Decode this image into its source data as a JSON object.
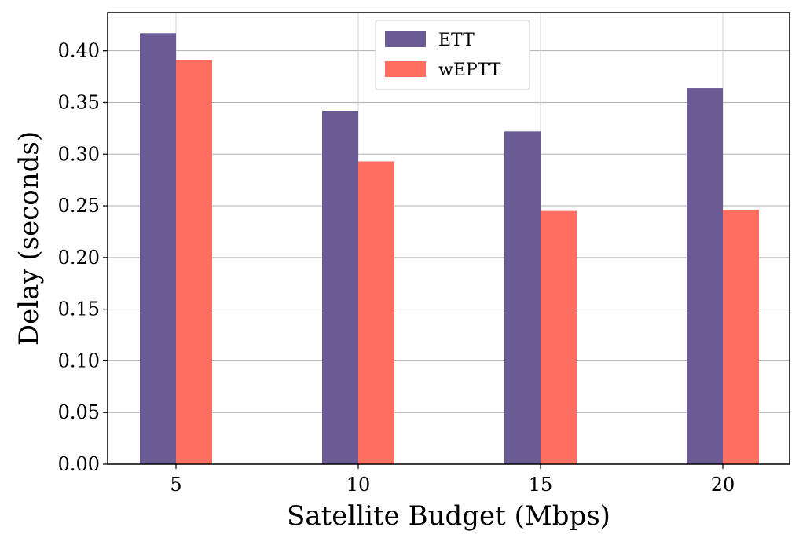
{
  "chart_data": {
    "type": "bar",
    "title": "",
    "xlabel": "Satellite Budget (Mbps)",
    "ylabel": "Delay (seconds)",
    "categories": [
      "5",
      "10",
      "15",
      "20"
    ],
    "series": [
      {
        "name": "ETT",
        "color": "#6b5b95",
        "values": [
          0.417,
          0.342,
          0.322,
          0.364
        ]
      },
      {
        "name": "wEPTT",
        "color": "#ff6f61",
        "values": [
          0.391,
          0.293,
          0.245,
          0.246
        ]
      }
    ],
    "ylim": [
      0,
      0.437
    ],
    "yticks": [
      "0.00",
      "0.05",
      "0.10",
      "0.15",
      "0.20",
      "0.25",
      "0.30",
      "0.35",
      "0.40"
    ],
    "grid": true,
    "legend_position": "top-center"
  }
}
